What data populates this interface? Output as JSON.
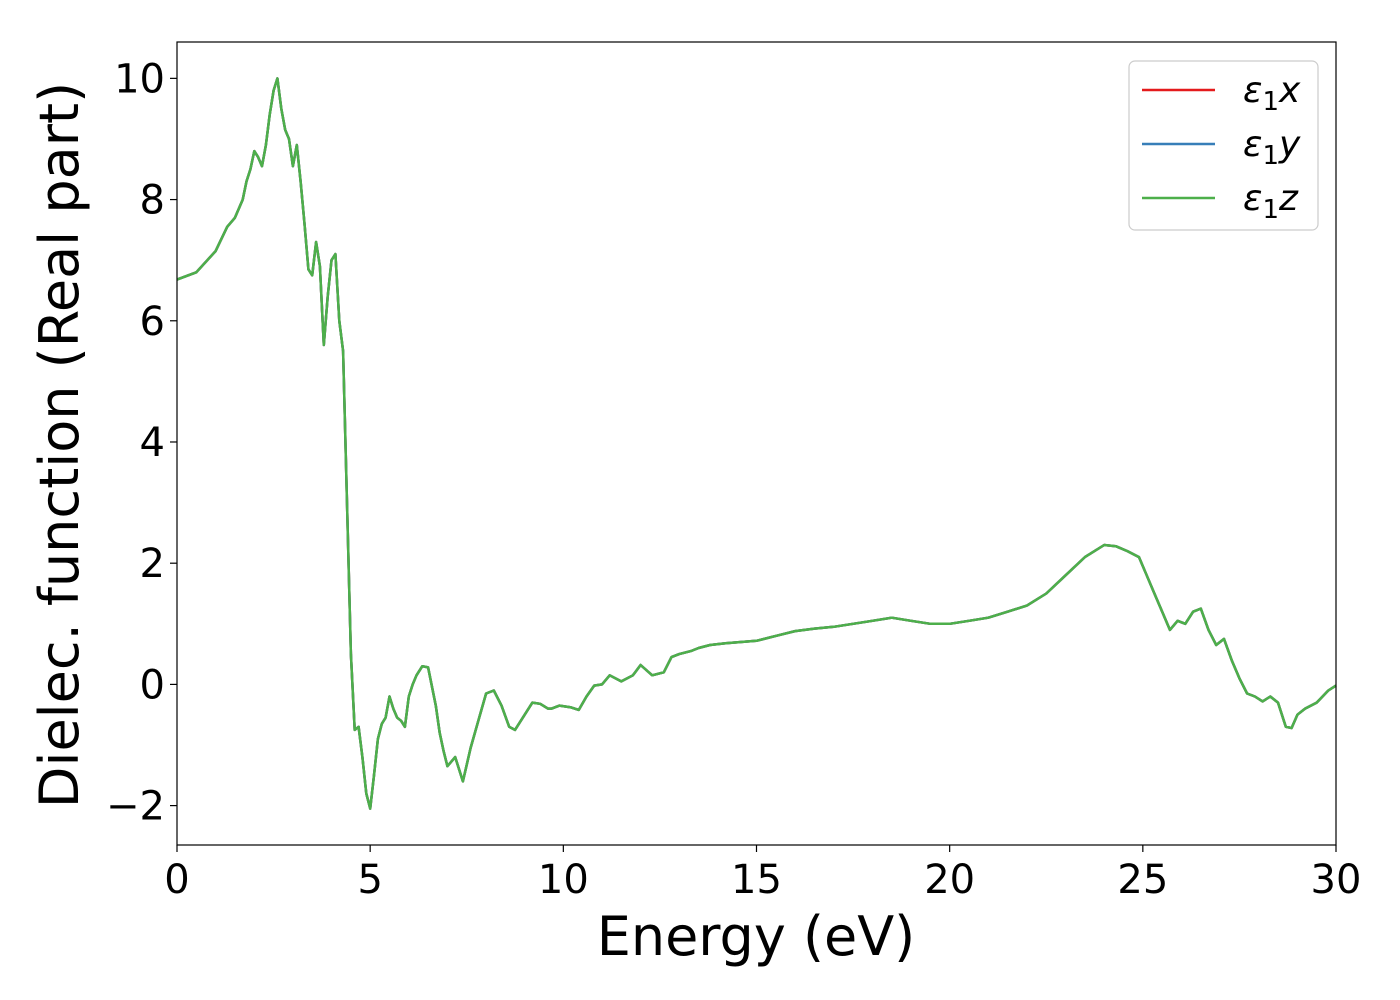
{
  "chart_data": {
    "type": "line",
    "title": "",
    "xlabel": "Energy (eV)",
    "ylabel": "Dielec. function (Real part)",
    "xlim": [
      0,
      30
    ],
    "ylim": [
      -2.65,
      10.6
    ],
    "xticks": [
      0,
      5,
      10,
      15,
      20,
      25,
      30
    ],
    "xtick_labels": [
      "0",
      "5",
      "10",
      "15",
      "20",
      "25",
      "30"
    ],
    "yticks": [
      -2,
      0,
      2,
      4,
      6,
      8,
      10
    ],
    "ytick_labels": [
      "−2",
      "0",
      "2",
      "4",
      "6",
      "8",
      "10"
    ],
    "grid": false,
    "legend_position": "top-right",
    "series": [
      {
        "name": "ε₁x",
        "base": "ε",
        "sub": "1",
        "suffix": "x",
        "color": "#e41a1c",
        "x": [
          0,
          0.5,
          1.0,
          1.3,
          1.5,
          1.7,
          1.8,
          1.9,
          2.0,
          2.1,
          2.2,
          2.3,
          2.4,
          2.5,
          2.6,
          2.7,
          2.8,
          2.9,
          3.0,
          3.1,
          3.2,
          3.3,
          3.4,
          3.5,
          3.6,
          3.7,
          3.8,
          3.9,
          4.0,
          4.1,
          4.2,
          4.3,
          4.4,
          4.5,
          4.6,
          4.7,
          4.8,
          4.9,
          5.0,
          5.1,
          5.2,
          5.3,
          5.4,
          5.5,
          5.6,
          5.7,
          5.8,
          5.9,
          6.0,
          6.1,
          6.2,
          6.35,
          6.5,
          6.7,
          6.8,
          6.9,
          7.0,
          7.2,
          7.4,
          7.6,
          7.8,
          8.0,
          8.2,
          8.4,
          8.6,
          8.75,
          9.0,
          9.2,
          9.4,
          9.6,
          9.7,
          9.9,
          10.2,
          10.4,
          10.6,
          10.8,
          11.0,
          11.2,
          11.5,
          11.8,
          12.0,
          12.3,
          12.6,
          12.8,
          13.0,
          13.3,
          13.5,
          13.8,
          14.2,
          14.6,
          15.0,
          15.5,
          16.0,
          16.5,
          17.0,
          17.5,
          18.0,
          18.5,
          19.0,
          19.5,
          20.0,
          20.5,
          21.0,
          21.5,
          22.0,
          22.5,
          23.0,
          23.5,
          24.0,
          24.3,
          24.6,
          24.9,
          25.1,
          25.3,
          25.5,
          25.7,
          25.9,
          26.1,
          26.3,
          26.5,
          26.7,
          26.9,
          27.1,
          27.3,
          27.5,
          27.7,
          27.9,
          28.1,
          28.3,
          28.5,
          28.7,
          28.85,
          29.0,
          29.2,
          29.5,
          29.8,
          30.0
        ],
        "y": [
          6.68,
          6.8,
          7.15,
          7.55,
          7.7,
          8.0,
          8.3,
          8.5,
          8.8,
          8.7,
          8.55,
          8.9,
          9.4,
          9.8,
          10.0,
          9.5,
          9.15,
          9.0,
          8.55,
          8.9,
          8.3,
          7.6,
          6.85,
          6.75,
          7.3,
          6.9,
          5.6,
          6.4,
          7.0,
          7.1,
          6.0,
          5.5,
          3.0,
          0.5,
          -0.75,
          -0.7,
          -1.2,
          -1.8,
          -2.05,
          -1.5,
          -0.9,
          -0.65,
          -0.55,
          -0.2,
          -0.4,
          -0.55,
          -0.6,
          -0.7,
          -0.2,
          0.0,
          0.15,
          0.3,
          0.28,
          -0.35,
          -0.8,
          -1.1,
          -1.35,
          -1.2,
          -1.6,
          -1.05,
          -0.6,
          -0.15,
          -0.1,
          -0.35,
          -0.7,
          -0.75,
          -0.5,
          -0.3,
          -0.32,
          -0.4,
          -0.4,
          -0.35,
          -0.38,
          -0.42,
          -0.2,
          -0.02,
          0.0,
          0.15,
          0.05,
          0.15,
          0.32,
          0.15,
          0.2,
          0.45,
          0.5,
          0.55,
          0.6,
          0.65,
          0.68,
          0.7,
          0.72,
          0.8,
          0.88,
          0.92,
          0.95,
          1.0,
          1.05,
          1.1,
          1.05,
          1.0,
          1.0,
          1.05,
          1.1,
          1.2,
          1.3,
          1.5,
          1.8,
          2.1,
          2.3,
          2.28,
          2.2,
          2.1,
          1.8,
          1.5,
          1.2,
          0.9,
          1.05,
          1.0,
          1.2,
          1.25,
          0.9,
          0.65,
          0.75,
          0.4,
          0.1,
          -0.15,
          -0.2,
          -0.28,
          -0.2,
          -0.3,
          -0.7,
          -0.72,
          -0.5,
          -0.4,
          -0.3,
          -0.1,
          -0.02
        ]
      },
      {
        "name": "ε₁y",
        "base": "ε",
        "sub": "1",
        "suffix": "y",
        "color": "#377eb8",
        "same_as": 0
      },
      {
        "name": "ε₁z",
        "base": "ε",
        "sub": "1",
        "suffix": "z",
        "color": "#4daf4a",
        "same_as": 0
      }
    ]
  }
}
